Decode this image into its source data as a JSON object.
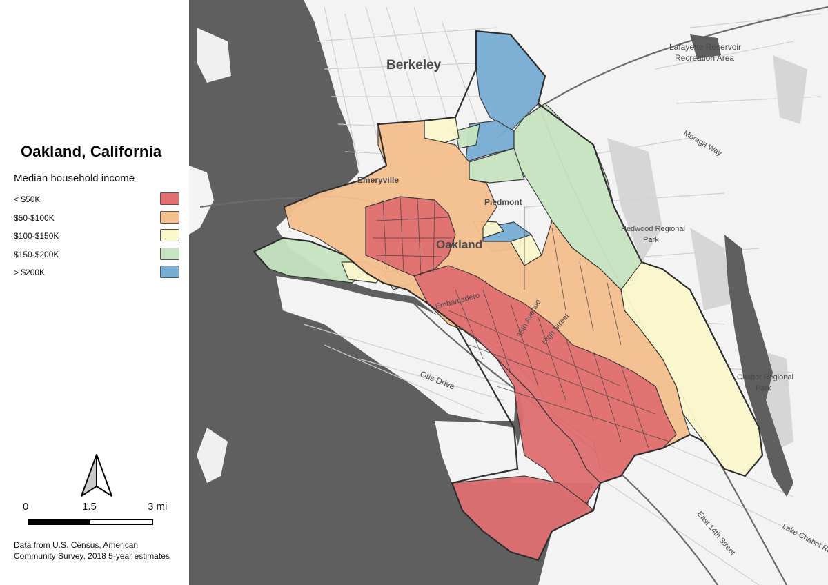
{
  "map": {
    "title": "Oakland, California",
    "legend": {
      "title": "Median household income",
      "items": [
        {
          "label": "< $50K",
          "color": "#e06f72"
        },
        {
          "label": "$50-$100K",
          "color": "#f5bf8e"
        },
        {
          "label": "$100-$150K",
          "color": "#fbf7cd"
        },
        {
          "label": "$150-$200K",
          "color": "#c6e4c0"
        },
        {
          "label": "> $200K",
          "color": "#78add4"
        }
      ]
    },
    "scale": {
      "labels": [
        "0",
        "1.5",
        "3 mi"
      ]
    },
    "source_note": "Data from U.S. Census, American Community Survey, 2018 5-year estimates",
    "place_labels": {
      "berkeley": "Berkeley",
      "oakland": "Oakland",
      "emeryville": "Emeryville",
      "piedmont": "Piedmont",
      "lafayette": "Lafayette Reservoir",
      "lafayette2": "Recreation Area",
      "moraga": "Moraga Way",
      "redwood": "Redwood Regional",
      "redwood2": "Park",
      "chabot": "Chabot Regional",
      "chabot2": "Park",
      "otis": "Otis Drive",
      "ave35": "35th Avenue",
      "high": "High Street",
      "east14": "East 14th Street",
      "lakechabot": "Lake Chabot Road",
      "embarcadero": "Embarcadero"
    },
    "colors": {
      "water": "#5f5f5f",
      "land": "#f3f3f3",
      "roads": "#cfcfcf",
      "boundary": "#2e2e2e"
    }
  }
}
